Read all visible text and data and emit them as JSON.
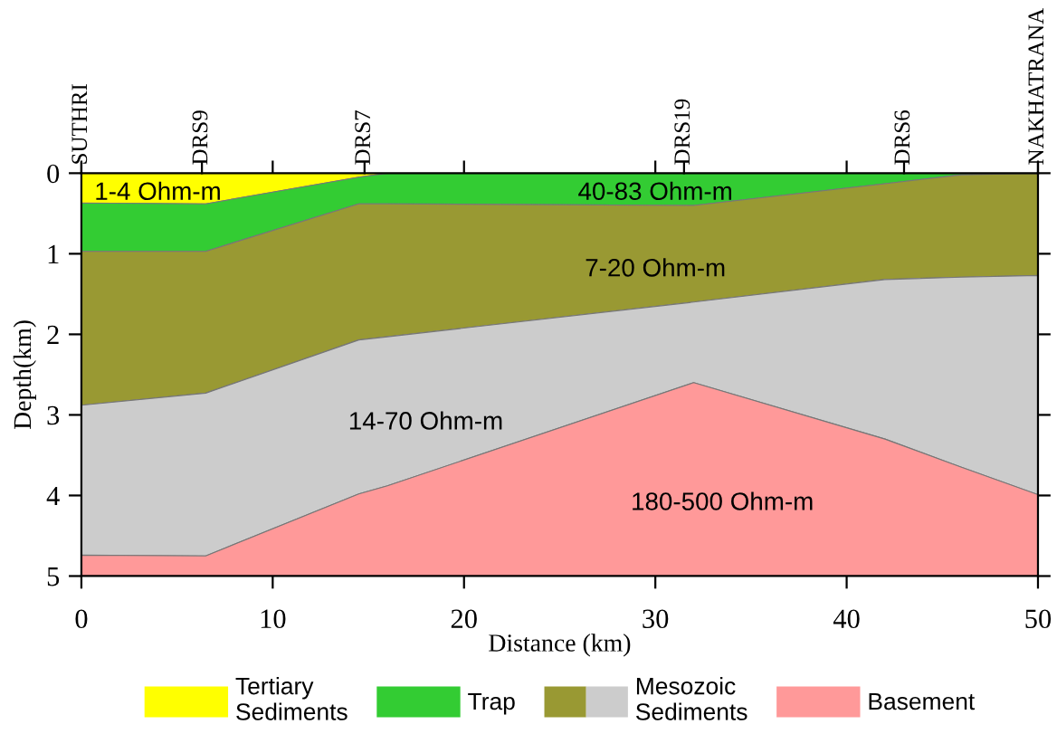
{
  "chart_data": {
    "type": "area",
    "stacked": true,
    "x": [
      0,
      6.5,
      14.5,
      16,
      32,
      42,
      46,
      50
    ],
    "series": [
      {
        "name": "Tertiary Sediments",
        "color": "#ffff00",
        "values": [
          0.37,
          0.38,
          0.05,
          0,
          0,
          0,
          0,
          0
        ]
      },
      {
        "name": "Trap",
        "color": "#33cc33",
        "values": [
          0.6,
          0.59,
          0.33,
          0.38,
          0.4,
          0.13,
          0.02,
          0
        ]
      },
      {
        "name": "Mesozoic Sediments",
        "color": "#999933",
        "values": [
          1.91,
          1.76,
          1.69,
          1.65,
          1.2,
          1.19,
          1.27,
          1.27
        ]
      },
      {
        "color": "#cccccc",
        "values": [
          1.86,
          2.02,
          1.91,
          1.85,
          1.0,
          1.98,
          2.36,
          2.72
        ]
      },
      {
        "name": "Basement",
        "color": "#ff9999",
        "values": [
          0.26,
          0.25,
          1.02,
          1.12,
          2.4,
          1.7,
          1.35,
          1.01
        ]
      }
    ],
    "xlabel": "Distance (km)",
    "ylabel": "Depth(km)",
    "xlim": [
      0,
      50
    ],
    "xticks": [
      0,
      10,
      20,
      30,
      40,
      50
    ],
    "ylim": [
      5,
      0
    ],
    "yticks": [
      0,
      1,
      2,
      3,
      4,
      5
    ],
    "annotations": [
      "SUTHRI",
      "DRS9",
      "DRS7",
      "DRS19",
      "DRS6",
      "NAKHATRANA",
      "1-4 Ohm-m",
      "40-83 Ohm-m",
      "7-20 Ohm-m",
      "14-70 Ohm-m",
      "180-500 Ohm-m"
    ],
    "legend": "bottom",
    "grid": false
  }
}
